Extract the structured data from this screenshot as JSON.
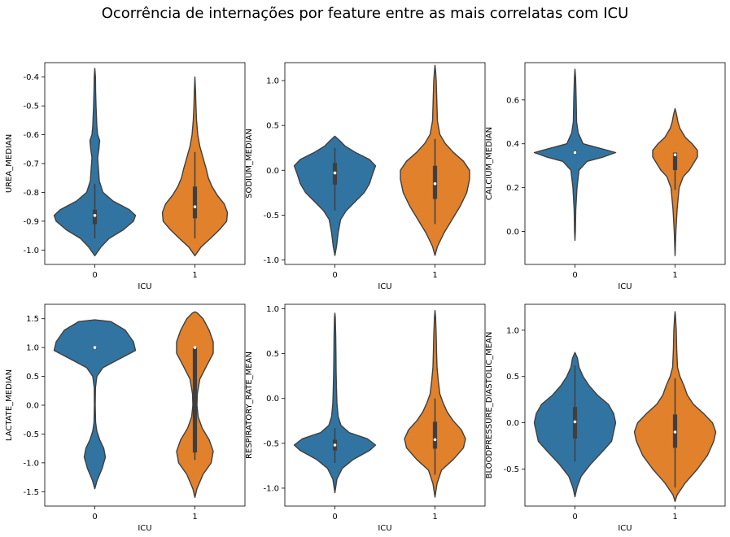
{
  "suptitle": "Ocorrência de internações por feature entre as mais correlatas com ICU",
  "colors": {
    "class0": "#3274a1",
    "class1": "#e1812c",
    "edge": "#3f3f3f",
    "box": "#3f3f3f"
  },
  "chart_data": [
    {
      "type": "violin",
      "xlabel": "ICU",
      "ylabel": "UREA_MEDIAN",
      "categories": [
        "0",
        "1"
      ],
      "ylim": [
        -1.05,
        -0.35
      ],
      "yticks": [
        "-1.0",
        "-0.9",
        "-0.8",
        "-0.7",
        "-0.6",
        "-0.5",
        "-0.4"
      ],
      "ytick_values": [
        -1.0,
        -0.9,
        -0.8,
        -0.7,
        -0.6,
        -0.5,
        -0.4
      ],
      "violins": [
        {
          "category": "0",
          "median": -0.88,
          "q1": -0.91,
          "q3": -0.86,
          "whisker_low": -0.96,
          "whisker_high": -0.77,
          "profile": [
            [
              -1.02,
              0.0
            ],
            [
              -0.99,
              0.15
            ],
            [
              -0.96,
              0.35
            ],
            [
              -0.93,
              0.7
            ],
            [
              -0.9,
              0.95
            ],
            [
              -0.88,
              1.0
            ],
            [
              -0.86,
              0.85
            ],
            [
              -0.83,
              0.45
            ],
            [
              -0.8,
              0.2
            ],
            [
              -0.76,
              0.11
            ],
            [
              -0.72,
              0.09
            ],
            [
              -0.68,
              0.07
            ],
            [
              -0.65,
              0.1
            ],
            [
              -0.62,
              0.12
            ],
            [
              -0.6,
              0.07
            ],
            [
              -0.57,
              0.05
            ],
            [
              -0.5,
              0.03
            ],
            [
              -0.45,
              0.02
            ],
            [
              -0.4,
              0.015
            ],
            [
              -0.37,
              0.0
            ]
          ]
        },
        {
          "category": "1",
          "median": -0.85,
          "q1": -0.89,
          "q3": -0.78,
          "whisker_low": -0.96,
          "whisker_high": -0.66,
          "profile": [
            [
              -1.02,
              0.0
            ],
            [
              -0.99,
              0.15
            ],
            [
              -0.96,
              0.38
            ],
            [
              -0.93,
              0.6
            ],
            [
              -0.9,
              0.78
            ],
            [
              -0.87,
              0.8
            ],
            [
              -0.84,
              0.72
            ],
            [
              -0.81,
              0.55
            ],
            [
              -0.78,
              0.42
            ],
            [
              -0.75,
              0.33
            ],
            [
              -0.72,
              0.28
            ],
            [
              -0.68,
              0.2
            ],
            [
              -0.64,
              0.12
            ],
            [
              -0.6,
              0.07
            ],
            [
              -0.55,
              0.04
            ],
            [
              -0.5,
              0.025
            ],
            [
              -0.45,
              0.015
            ],
            [
              -0.4,
              0.0
            ]
          ]
        }
      ]
    },
    {
      "type": "violin",
      "xlabel": "ICU",
      "ylabel": "SODIUM_MEDIAN",
      "categories": [
        "0",
        "1"
      ],
      "ylim": [
        -1.05,
        1.2
      ],
      "yticks": [
        "-1.0",
        "-0.5",
        "0.0",
        "0.5",
        "1.0"
      ],
      "ytick_values": [
        -1.0,
        -0.5,
        0.0,
        0.5,
        1.0
      ],
      "violins": [
        {
          "category": "0",
          "median": -0.03,
          "q1": -0.16,
          "q3": 0.08,
          "whisker_low": -0.45,
          "whisker_high": 0.25,
          "profile": [
            [
              -0.95,
              0.0
            ],
            [
              -0.85,
              0.04
            ],
            [
              -0.7,
              0.08
            ],
            [
              -0.55,
              0.14
            ],
            [
              -0.45,
              0.28
            ],
            [
              -0.35,
              0.5
            ],
            [
              -0.25,
              0.72
            ],
            [
              -0.15,
              0.85
            ],
            [
              -0.05,
              0.92
            ],
            [
              0.05,
              1.0
            ],
            [
              0.12,
              0.85
            ],
            [
              0.2,
              0.5
            ],
            [
              0.27,
              0.25
            ],
            [
              0.33,
              0.12
            ],
            [
              0.38,
              0.0
            ]
          ]
        },
        {
          "category": "1",
          "median": -0.15,
          "q1": -0.32,
          "q3": 0.05,
          "whisker_low": -0.6,
          "whisker_high": 0.35,
          "profile": [
            [
              -0.95,
              0.0
            ],
            [
              -0.85,
              0.06
            ],
            [
              -0.7,
              0.22
            ],
            [
              -0.55,
              0.42
            ],
            [
              -0.4,
              0.62
            ],
            [
              -0.25,
              0.78
            ],
            [
              -0.1,
              0.85
            ],
            [
              0.0,
              0.85
            ],
            [
              0.1,
              0.7
            ],
            [
              0.2,
              0.45
            ],
            [
              0.3,
              0.25
            ],
            [
              0.4,
              0.12
            ],
            [
              0.55,
              0.06
            ],
            [
              0.7,
              0.05
            ],
            [
              0.85,
              0.04
            ],
            [
              1.0,
              0.03
            ],
            [
              1.1,
              0.015
            ],
            [
              1.17,
              0.0
            ]
          ]
        }
      ]
    },
    {
      "type": "violin",
      "xlabel": "ICU",
      "ylabel": "CALCIUM_MEDIAN",
      "categories": [
        "0",
        "1"
      ],
      "ylim": [
        -0.15,
        0.77
      ],
      "yticks": [
        "0.0",
        "0.2",
        "0.4",
        "0.6"
      ],
      "ytick_values": [
        0.0,
        0.2,
        0.4,
        0.6
      ],
      "violins": [
        {
          "category": "0",
          "median": 0.36,
          "q1": 0.355,
          "q3": 0.365,
          "whisker_low": 0.35,
          "whisker_high": 0.37,
          "profile": [
            [
              -0.04,
              0.0
            ],
            [
              0.0,
              0.01
            ],
            [
              0.1,
              0.02
            ],
            [
              0.2,
              0.05
            ],
            [
              0.28,
              0.1
            ],
            [
              0.32,
              0.3
            ],
            [
              0.34,
              0.7
            ],
            [
              0.36,
              1.0
            ],
            [
              0.38,
              0.6
            ],
            [
              0.4,
              0.2
            ],
            [
              0.45,
              0.08
            ],
            [
              0.5,
              0.04
            ],
            [
              0.6,
              0.03
            ],
            [
              0.7,
              0.015
            ],
            [
              0.74,
              0.0
            ]
          ]
        },
        {
          "category": "1",
          "median": 0.35,
          "q1": 0.28,
          "q3": 0.36,
          "whisker_low": 0.19,
          "whisker_high": 0.36,
          "profile": [
            [
              -0.11,
              0.0
            ],
            [
              0.0,
              0.02
            ],
            [
              0.1,
              0.05
            ],
            [
              0.2,
              0.1
            ],
            [
              0.25,
              0.2
            ],
            [
              0.28,
              0.35
            ],
            [
              0.31,
              0.45
            ],
            [
              0.34,
              0.55
            ],
            [
              0.37,
              0.55
            ],
            [
              0.4,
              0.42
            ],
            [
              0.43,
              0.25
            ],
            [
              0.47,
              0.12
            ],
            [
              0.5,
              0.07
            ],
            [
              0.53,
              0.04
            ],
            [
              0.56,
              0.0
            ]
          ]
        }
      ]
    },
    {
      "type": "violin",
      "xlabel": "ICU",
      "ylabel": "LACTATE_MEDIAN",
      "categories": [
        "0",
        "1"
      ],
      "ylim": [
        -1.75,
        1.75
      ],
      "yticks": [
        "-1.5",
        "-1.0",
        "-0.5",
        "0.0",
        "0.5",
        "1.0",
        "1.5"
      ],
      "ytick_values": [
        -1.5,
        -1.0,
        -0.5,
        0.0,
        0.5,
        1.0,
        1.5
      ],
      "violins": [
        {
          "category": "0",
          "median": 1.0,
          "q1": 1.0,
          "q3": 1.0,
          "whisker_low": 1.0,
          "whisker_high": 1.0,
          "profile": [
            [
              -1.45,
              0.0
            ],
            [
              -1.3,
              0.06
            ],
            [
              -1.1,
              0.18
            ],
            [
              -0.9,
              0.26
            ],
            [
              -0.75,
              0.22
            ],
            [
              -0.6,
              0.12
            ],
            [
              -0.45,
              0.05
            ],
            [
              -0.3,
              0.02
            ],
            [
              0.0,
              0.01
            ],
            [
              0.3,
              0.015
            ],
            [
              0.5,
              0.05
            ],
            [
              0.65,
              0.2
            ],
            [
              0.8,
              0.6
            ],
            [
              0.95,
              1.0
            ],
            [
              1.1,
              0.95
            ],
            [
              1.3,
              0.75
            ],
            [
              1.45,
              0.4
            ],
            [
              1.48,
              0.0
            ]
          ]
        },
        {
          "category": "1",
          "median": 1.0,
          "q1": -0.82,
          "q3": 1.0,
          "whisker_low": -0.95,
          "whisker_high": 1.0,
          "profile": [
            [
              -1.6,
              0.0
            ],
            [
              -1.45,
              0.05
            ],
            [
              -1.2,
              0.2
            ],
            [
              -1.0,
              0.4
            ],
            [
              -0.8,
              0.45
            ],
            [
              -0.6,
              0.35
            ],
            [
              -0.4,
              0.18
            ],
            [
              -0.2,
              0.08
            ],
            [
              0.0,
              0.05
            ],
            [
              0.2,
              0.06
            ],
            [
              0.45,
              0.12
            ],
            [
              0.7,
              0.3
            ],
            [
              0.9,
              0.45
            ],
            [
              1.1,
              0.45
            ],
            [
              1.3,
              0.35
            ],
            [
              1.5,
              0.2
            ],
            [
              1.6,
              0.06
            ],
            [
              1.62,
              0.0
            ]
          ]
        }
      ]
    },
    {
      "type": "violin",
      "xlabel": "ICU",
      "ylabel": "RESPIRATORY_RATE_MEAN",
      "categories": [
        "0",
        "1"
      ],
      "ylim": [
        -1.2,
        1.05
      ],
      "yticks": [
        "-1.0",
        "-0.5",
        "0.0",
        "0.5",
        "1.0"
      ],
      "ytick_values": [
        -1.0,
        -0.5,
        0.0,
        0.5,
        1.0
      ],
      "violins": [
        {
          "category": "0",
          "median": -0.52,
          "q1": -0.58,
          "q3": -0.46,
          "whisker_low": -0.72,
          "whisker_high": -0.33,
          "profile": [
            [
              -1.05,
              0.0
            ],
            [
              -0.9,
              0.05
            ],
            [
              -0.78,
              0.18
            ],
            [
              -0.68,
              0.45
            ],
            [
              -0.58,
              0.85
            ],
            [
              -0.52,
              1.0
            ],
            [
              -0.45,
              0.8
            ],
            [
              -0.38,
              0.35
            ],
            [
              -0.3,
              0.15
            ],
            [
              -0.2,
              0.08
            ],
            [
              -0.05,
              0.05
            ],
            [
              0.1,
              0.04
            ],
            [
              0.3,
              0.03
            ],
            [
              0.5,
              0.025
            ],
            [
              0.7,
              0.02
            ],
            [
              0.9,
              0.01
            ],
            [
              0.95,
              0.0
            ]
          ]
        },
        {
          "category": "1",
          "median": -0.46,
          "q1": -0.56,
          "q3": -0.26,
          "whisker_low": -0.85,
          "whisker_high": 0.0,
          "profile": [
            [
              -1.1,
              0.0
            ],
            [
              -0.95,
              0.05
            ],
            [
              -0.8,
              0.16
            ],
            [
              -0.68,
              0.45
            ],
            [
              -0.55,
              0.7
            ],
            [
              -0.45,
              0.75
            ],
            [
              -0.35,
              0.65
            ],
            [
              -0.25,
              0.45
            ],
            [
              -0.15,
              0.3
            ],
            [
              -0.05,
              0.2
            ],
            [
              0.05,
              0.12
            ],
            [
              0.2,
              0.08
            ],
            [
              0.35,
              0.05
            ],
            [
              0.5,
              0.04
            ],
            [
              0.7,
              0.03
            ],
            [
              0.9,
              0.015
            ],
            [
              0.98,
              0.0
            ]
          ]
        }
      ]
    },
    {
      "type": "violin",
      "xlabel": "ICU",
      "ylabel": "BLOODPRESSURE_DIASTOLIC_MEAN",
      "categories": [
        "0",
        "1"
      ],
      "ylim": [
        -0.9,
        1.28
      ],
      "yticks": [
        "-0.5",
        "0.0",
        "0.5",
        "1.0"
      ],
      "ytick_values": [
        -0.5,
        0.0,
        0.5,
        1.0
      ],
      "violins": [
        {
          "category": "0",
          "median": 0.01,
          "q1": -0.17,
          "q3": 0.17,
          "whisker_low": -0.42,
          "whisker_high": 0.62,
          "profile": [
            [
              -0.8,
              0.0
            ],
            [
              -0.7,
              0.05
            ],
            [
              -0.58,
              0.15
            ],
            [
              -0.45,
              0.38
            ],
            [
              -0.3,
              0.7
            ],
            [
              -0.2,
              0.9
            ],
            [
              -0.1,
              0.95
            ],
            [
              0.0,
              1.0
            ],
            [
              0.1,
              0.95
            ],
            [
              0.2,
              0.82
            ],
            [
              0.3,
              0.55
            ],
            [
              0.4,
              0.35
            ],
            [
              0.5,
              0.2
            ],
            [
              0.6,
              0.1
            ],
            [
              0.7,
              0.06
            ],
            [
              0.76,
              0.0
            ]
          ]
        },
        {
          "category": "1",
          "median": -0.1,
          "q1": -0.27,
          "q3": 0.09,
          "whisker_low": -0.7,
          "whisker_high": 0.48,
          "profile": [
            [
              -0.85,
              0.0
            ],
            [
              -0.78,
              0.05
            ],
            [
              -0.65,
              0.25
            ],
            [
              -0.5,
              0.55
            ],
            [
              -0.35,
              0.8
            ],
            [
              -0.2,
              0.95
            ],
            [
              -0.1,
              1.0
            ],
            [
              0.0,
              0.92
            ],
            [
              0.1,
              0.7
            ],
            [
              0.2,
              0.45
            ],
            [
              0.3,
              0.3
            ],
            [
              0.4,
              0.22
            ],
            [
              0.5,
              0.12
            ],
            [
              0.6,
              0.06
            ],
            [
              0.8,
              0.04
            ],
            [
              1.0,
              0.03
            ],
            [
              1.15,
              0.01
            ],
            [
              1.2,
              0.0
            ]
          ]
        }
      ]
    }
  ]
}
